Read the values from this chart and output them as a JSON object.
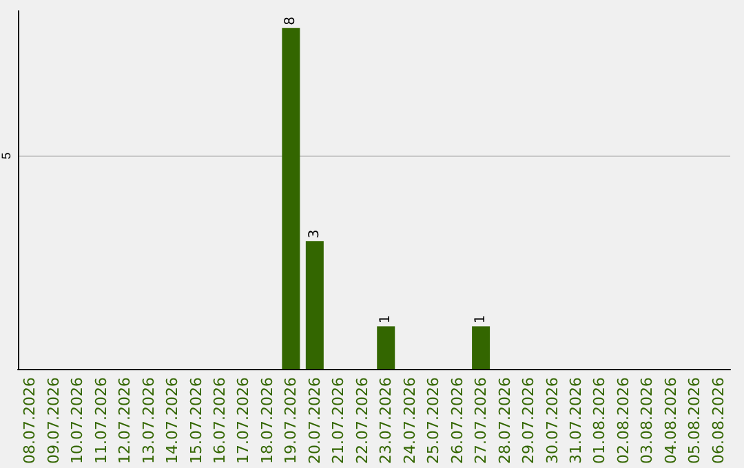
{
  "chart_data": {
    "type": "bar",
    "categories": [
      "08.07.2026",
      "09.07.2026",
      "10.07.2026",
      "11.07.2026",
      "12.07.2026",
      "13.07.2026",
      "14.07.2026",
      "15.07.2026",
      "16.07.2026",
      "17.07.2026",
      "18.07.2026",
      "19.07.2026",
      "20.07.2026",
      "21.07.2026",
      "22.07.2026",
      "23.07.2026",
      "24.07.2026",
      "25.07.2026",
      "26.07.2026",
      "27.07.2026",
      "28.07.2026",
      "29.07.2026",
      "30.07.2026",
      "31.07.2026",
      "01.08.2026",
      "02.08.2026",
      "03.08.2026",
      "04.08.2026",
      "05.08.2026",
      "06.08.2026"
    ],
    "values": [
      0,
      0,
      0,
      0,
      0,
      0,
      0,
      0,
      0,
      0,
      0,
      8,
      3,
      0,
      0,
      1,
      0,
      0,
      0,
      1,
      0,
      0,
      0,
      0,
      0,
      0,
      0,
      0,
      0,
      0
    ],
    "value_labels": [
      null,
      null,
      null,
      null,
      null,
      null,
      null,
      null,
      null,
      null,
      null,
      "8",
      "3",
      null,
      null,
      "1",
      null,
      null,
      null,
      "1",
      null,
      null,
      null,
      null,
      null,
      null,
      null,
      null,
      null,
      null
    ],
    "color": "#336600",
    "ylim": [
      0,
      8.4
    ],
    "yticks": [
      5
    ],
    "grid": "y"
  }
}
